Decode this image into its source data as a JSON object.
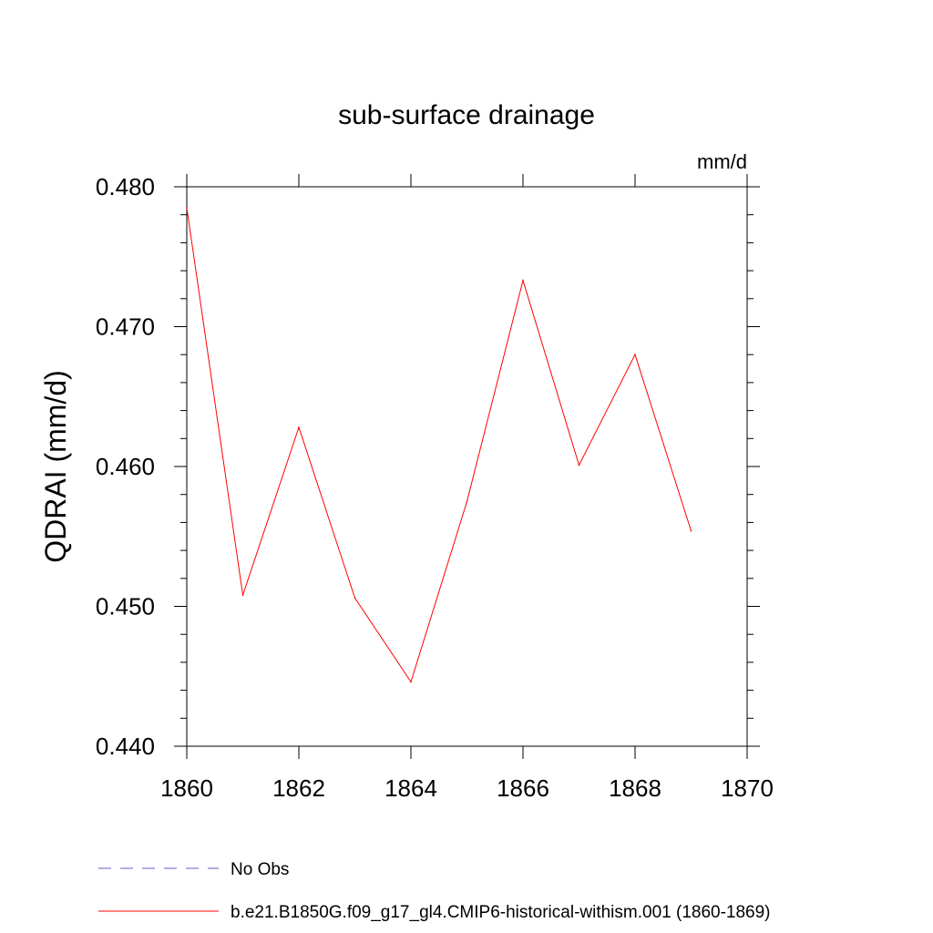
{
  "chart_data": {
    "type": "line",
    "title": "sub-surface drainage",
    "units": "mm/d",
    "ylabel": "QDRAI  (mm/d)",
    "xlabel": "",
    "xlim": [
      1860,
      1870
    ],
    "ylim": [
      0.44,
      0.48
    ],
    "xticks": [
      "1860",
      "1862",
      "1864",
      "1866",
      "1868",
      "1870"
    ],
    "yticks": [
      "0.440",
      "0.450",
      "0.460",
      "0.470",
      "0.480"
    ],
    "grid": false,
    "legend_position": "bottom",
    "series": [
      {
        "name": "No Obs",
        "color": "#6a5acd",
        "dash": "dashed",
        "x": [],
        "y": []
      },
      {
        "name": "b.e21.B1850G.f09_g17_gl4.CMIP6-historical-withism.001 (1860-1869)",
        "color": "#ff0000",
        "dash": "solid",
        "x": [
          1860,
          1861,
          1862,
          1863,
          1864,
          1865,
          1866,
          1867,
          1868,
          1869
        ],
        "y": [
          0.4785,
          0.4508,
          0.4628,
          0.4506,
          0.4446,
          0.4575,
          0.4733,
          0.4601,
          0.468,
          0.4554
        ]
      }
    ]
  }
}
